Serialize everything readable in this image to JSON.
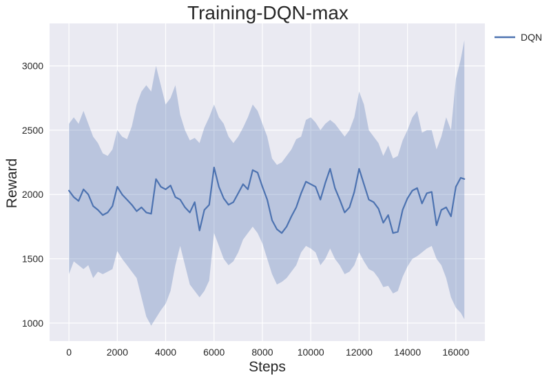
{
  "chart_data": {
    "type": "line",
    "title": "Training-DQN-max",
    "xlabel": "Steps",
    "ylabel": "Reward",
    "xlim": [
      -800,
      17200
    ],
    "ylim": [
      860,
      3330
    ],
    "xticks": [
      0,
      2000,
      4000,
      6000,
      8000,
      10000,
      12000,
      14000,
      16000
    ],
    "yticks": [
      1000,
      1500,
      2000,
      2500,
      3000
    ],
    "grid": true,
    "legend_position": "outside-top-right",
    "colors": {
      "background": "#eaeaf2",
      "grid": "#ffffff",
      "line": "#4c72b0",
      "band": "#4c72b0"
    },
    "series": [
      {
        "name": "DQN",
        "x": [
          0,
          200,
          400,
          600,
          800,
          1000,
          1200,
          1400,
          1600,
          1800,
          2000,
          2200,
          2400,
          2600,
          2800,
          3000,
          3200,
          3400,
          3600,
          3800,
          4000,
          4200,
          4400,
          4600,
          4800,
          5000,
          5200,
          5400,
          5600,
          5800,
          6000,
          6200,
          6400,
          6600,
          6800,
          7000,
          7200,
          7400,
          7600,
          7800,
          8000,
          8200,
          8400,
          8600,
          8800,
          9000,
          9200,
          9400,
          9600,
          9800,
          10000,
          10200,
          10400,
          10600,
          10800,
          11000,
          11200,
          11400,
          11600,
          11800,
          12000,
          12200,
          12400,
          12600,
          12800,
          13000,
          13200,
          13400,
          13600,
          13800,
          14000,
          14200,
          14400,
          14600,
          14800,
          15000,
          15200,
          15400,
          15600,
          15800,
          16000,
          16200,
          16350
        ],
        "mean": [
          2030,
          1980,
          1950,
          2040,
          2000,
          1910,
          1880,
          1840,
          1860,
          1910,
          2060,
          2000,
          1960,
          1920,
          1870,
          1900,
          1860,
          1850,
          2120,
          2060,
          2040,
          2070,
          1980,
          1960,
          1900,
          1860,
          1940,
          1720,
          1880,
          1920,
          2210,
          2060,
          1970,
          1920,
          1940,
          2010,
          2080,
          2040,
          2190,
          2170,
          2060,
          1960,
          1800,
          1730,
          1700,
          1750,
          1830,
          1900,
          2010,
          2100,
          2080,
          2060,
          1960,
          2090,
          2200,
          2050,
          1960,
          1860,
          1900,
          2020,
          2200,
          2080,
          1960,
          1940,
          1890,
          1780,
          1840,
          1700,
          1710,
          1880,
          1970,
          2030,
          2050,
          1930,
          2010,
          2020,
          1760,
          1880,
          1900,
          1830,
          2060,
          2130,
          2120
        ],
        "lower": [
          1380,
          1480,
          1450,
          1420,
          1450,
          1350,
          1400,
          1380,
          1400,
          1420,
          1560,
          1500,
          1450,
          1400,
          1350,
          1200,
          1050,
          980,
          1040,
          1100,
          1150,
          1250,
          1450,
          1600,
          1450,
          1300,
          1250,
          1200,
          1250,
          1330,
          1700,
          1600,
          1500,
          1450,
          1480,
          1550,
          1650,
          1700,
          1750,
          1700,
          1620,
          1500,
          1380,
          1300,
          1320,
          1350,
          1400,
          1450,
          1550,
          1600,
          1580,
          1550,
          1450,
          1500,
          1580,
          1500,
          1450,
          1380,
          1400,
          1450,
          1550,
          1480,
          1420,
          1400,
          1350,
          1280,
          1290,
          1230,
          1250,
          1360,
          1440,
          1500,
          1520,
          1550,
          1580,
          1600,
          1500,
          1450,
          1350,
          1200,
          1120,
          1080,
          1030
        ],
        "upper": [
          2550,
          2600,
          2550,
          2650,
          2550,
          2450,
          2400,
          2320,
          2300,
          2350,
          2500,
          2450,
          2430,
          2530,
          2700,
          2800,
          2850,
          2800,
          3000,
          2850,
          2700,
          2750,
          2850,
          2620,
          2500,
          2420,
          2440,
          2400,
          2520,
          2600,
          2700,
          2600,
          2550,
          2450,
          2400,
          2450,
          2520,
          2600,
          2700,
          2650,
          2550,
          2450,
          2280,
          2230,
          2250,
          2300,
          2350,
          2430,
          2450,
          2580,
          2600,
          2560,
          2500,
          2550,
          2580,
          2550,
          2500,
          2450,
          2500,
          2600,
          2800,
          2700,
          2500,
          2450,
          2400,
          2300,
          2380,
          2280,
          2300,
          2420,
          2500,
          2600,
          2650,
          2480,
          2500,
          2500,
          2350,
          2450,
          2600,
          2500,
          2900,
          3050,
          3200
        ]
      }
    ]
  }
}
